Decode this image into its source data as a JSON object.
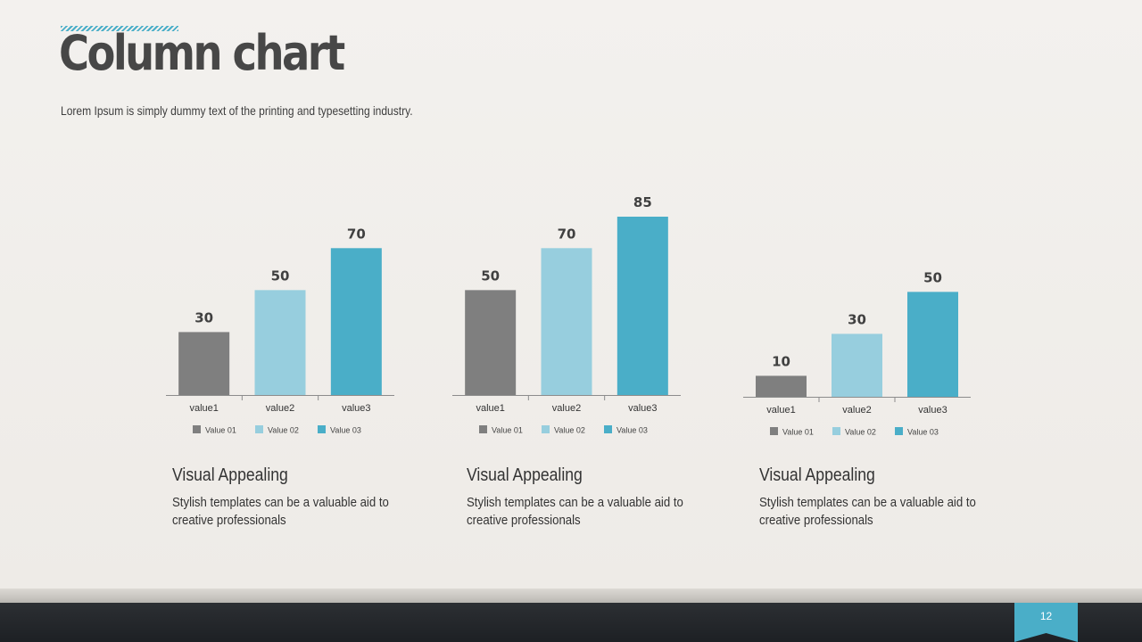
{
  "slide": {
    "title": "Column chart",
    "subtitle": "Lorem Ipsum is simply dummy text of the printing and typesetting industry.",
    "page_number": "12"
  },
  "colors": {
    "value01": "#7f7f7f",
    "value02": "#97cede",
    "value03": "#4aaec8",
    "accent": "#4aaec8"
  },
  "chart_data": [
    {
      "type": "bar",
      "categories": [
        "value1",
        "value2",
        "value3"
      ],
      "values": [
        30,
        50,
        70
      ],
      "legend": [
        "Value 01",
        "Value 02",
        "Value 03"
      ],
      "legend_position": "bottom",
      "ylim": [
        0,
        85
      ]
    },
    {
      "type": "bar",
      "categories": [
        "value1",
        "value2",
        "value3"
      ],
      "values": [
        50,
        70,
        85
      ],
      "legend": [
        "Value 01",
        "Value 02",
        "Value 03"
      ],
      "legend_position": "bottom",
      "ylim": [
        0,
        85
      ]
    },
    {
      "type": "bar",
      "categories": [
        "value1",
        "value2",
        "value3"
      ],
      "values": [
        10,
        30,
        50
      ],
      "legend": [
        "Value 01",
        "Value 02",
        "Value 03"
      ],
      "legend_position": "bottom",
      "ylim": [
        0,
        85
      ]
    }
  ],
  "cards": [
    {
      "title": "Visual Appealing",
      "text": "Stylish templates can be a valuable aid to creative professionals"
    },
    {
      "title": "Visual Appealing",
      "text": "Stylish templates can be a valuable aid to creative professionals"
    },
    {
      "title": "Visual Appealing",
      "text": "Stylish templates can be a valuable aid to creative professionals"
    }
  ]
}
